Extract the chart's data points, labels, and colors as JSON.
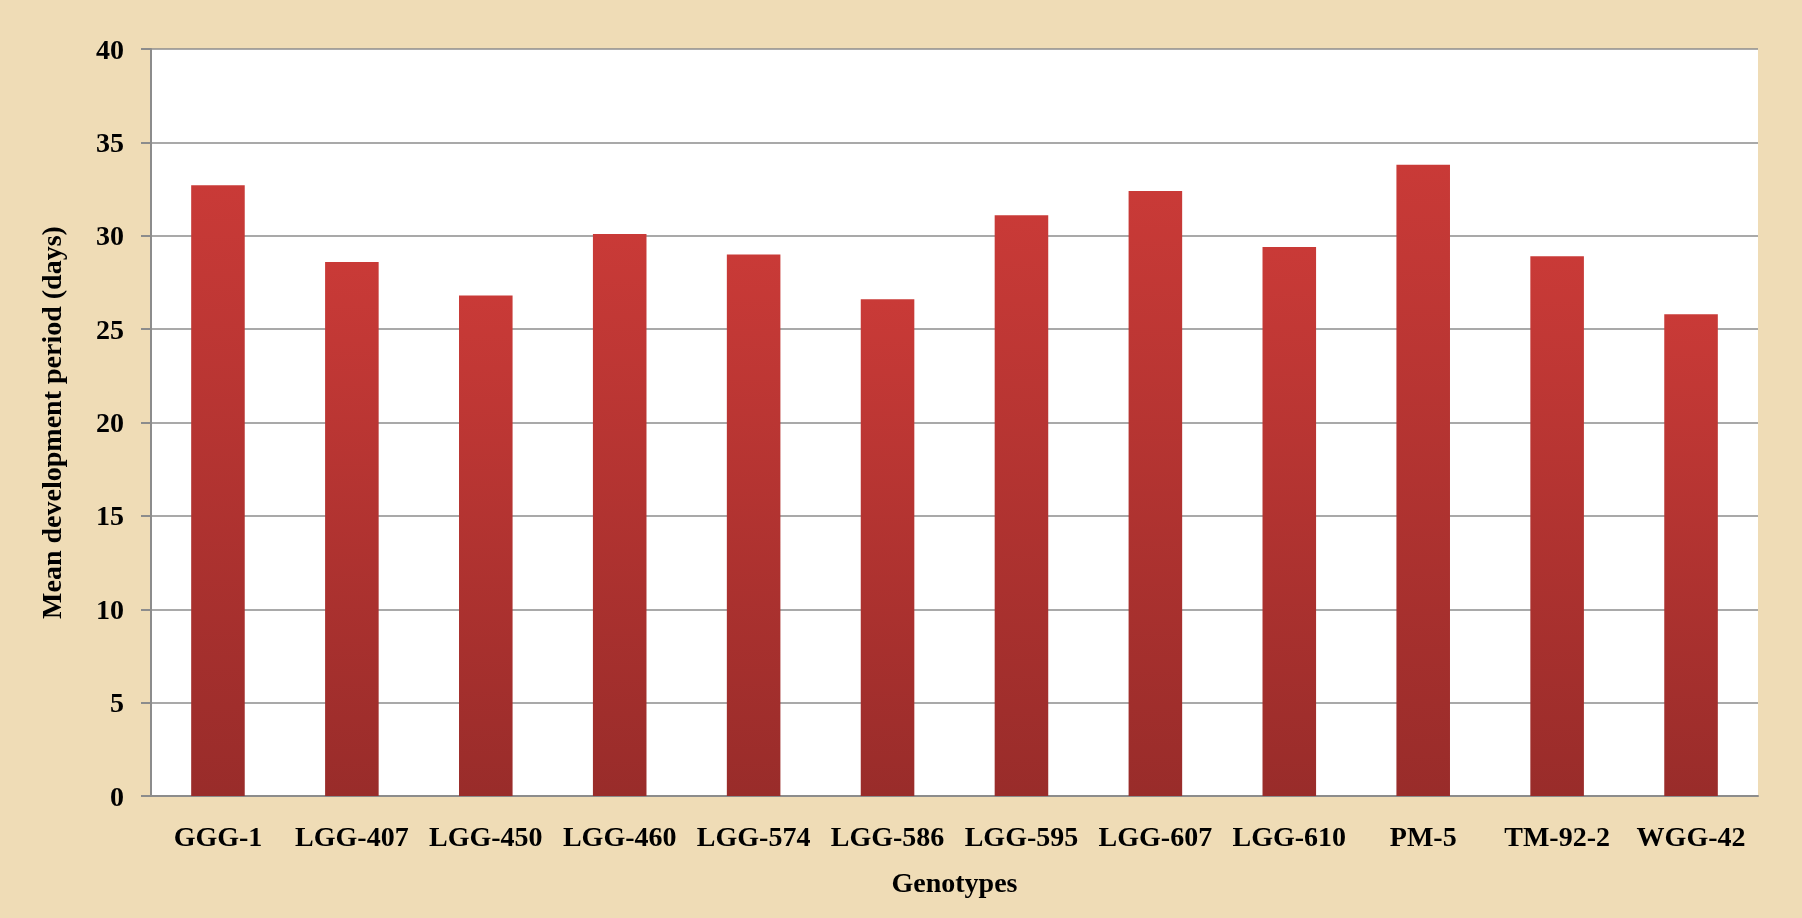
{
  "chart_data": {
    "type": "bar",
    "xlabel": "Genotypes",
    "ylabel": "Mean development period (days)",
    "categories": [
      "GGG-1",
      "LGG-407",
      "LGG-450",
      "LGG-460",
      "LGG-574",
      "LGG-586",
      "LGG-595",
      "LGG-607",
      "LGG-610",
      "PM-5",
      "TM-92-2",
      "WGG-42"
    ],
    "values": [
      32.7,
      28.6,
      26.8,
      30.1,
      29.0,
      26.6,
      31.1,
      32.4,
      29.4,
      33.8,
      28.9,
      25.8
    ],
    "color": "#c93a37",
    "ylim": [
      0,
      40
    ],
    "yticks": [
      0,
      5,
      10,
      15,
      20,
      25,
      30,
      35,
      40
    ],
    "grid": "y"
  }
}
